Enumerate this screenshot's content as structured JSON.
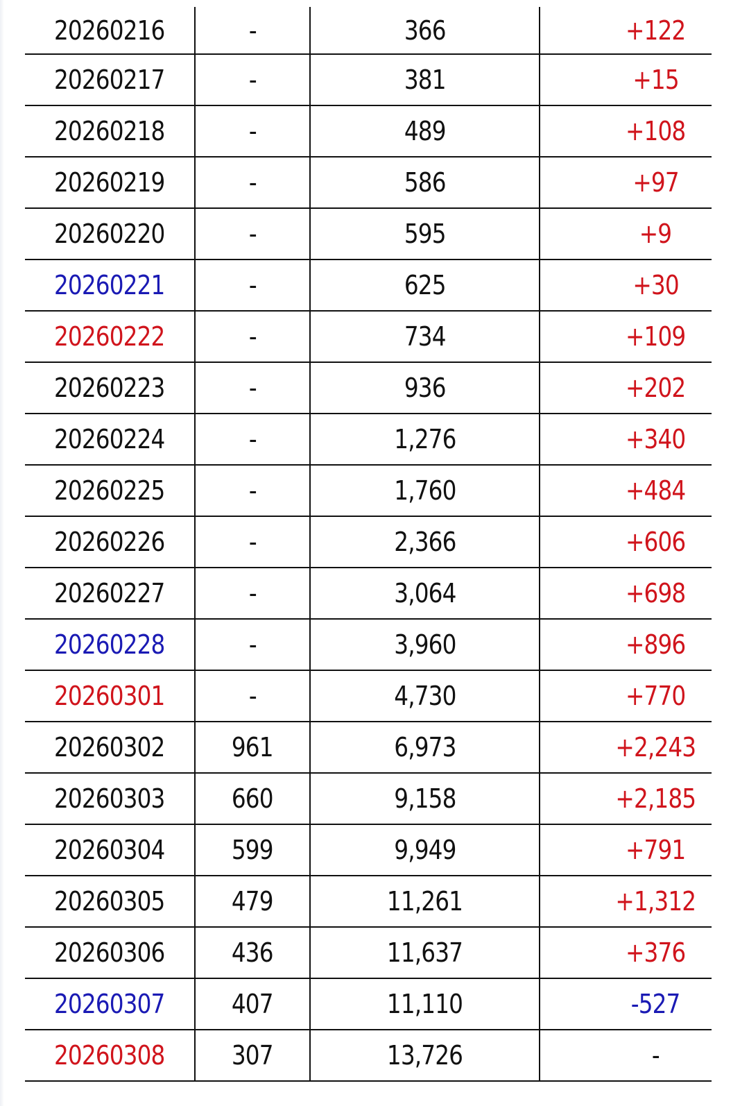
{
  "colors": {
    "default": "#111111",
    "blue": "#1a1ab4",
    "red": "#d0141c"
  },
  "rows": [
    {
      "date": "20260216",
      "date_color": "default",
      "c2": "-",
      "c3": "366",
      "c4": "+122",
      "c4_color": "red"
    },
    {
      "date": "20260217",
      "date_color": "default",
      "c2": "-",
      "c3": "381",
      "c4": "+15",
      "c4_color": "red"
    },
    {
      "date": "20260218",
      "date_color": "default",
      "c2": "-",
      "c3": "489",
      "c4": "+108",
      "c4_color": "red"
    },
    {
      "date": "20260219",
      "date_color": "default",
      "c2": "-",
      "c3": "586",
      "c4": "+97",
      "c4_color": "red"
    },
    {
      "date": "20260220",
      "date_color": "default",
      "c2": "-",
      "c3": "595",
      "c4": "+9",
      "c4_color": "red"
    },
    {
      "date": "20260221",
      "date_color": "blue",
      "c2": "-",
      "c3": "625",
      "c4": "+30",
      "c4_color": "red"
    },
    {
      "date": "20260222",
      "date_color": "red",
      "c2": "-",
      "c3": "734",
      "c4": "+109",
      "c4_color": "red"
    },
    {
      "date": "20260223",
      "date_color": "default",
      "c2": "-",
      "c3": "936",
      "c4": "+202",
      "c4_color": "red"
    },
    {
      "date": "20260224",
      "date_color": "default",
      "c2": "-",
      "c3": "1,276",
      "c4": "+340",
      "c4_color": "red"
    },
    {
      "date": "20260225",
      "date_color": "default",
      "c2": "-",
      "c3": "1,760",
      "c4": "+484",
      "c4_color": "red"
    },
    {
      "date": "20260226",
      "date_color": "default",
      "c2": "-",
      "c3": "2,366",
      "c4": "+606",
      "c4_color": "red"
    },
    {
      "date": "20260227",
      "date_color": "default",
      "c2": "-",
      "c3": "3,064",
      "c4": "+698",
      "c4_color": "red"
    },
    {
      "date": "20260228",
      "date_color": "blue",
      "c2": "-",
      "c3": "3,960",
      "c4": "+896",
      "c4_color": "red"
    },
    {
      "date": "20260301",
      "date_color": "red",
      "c2": "-",
      "c3": "4,730",
      "c4": "+770",
      "c4_color": "red"
    },
    {
      "date": "20260302",
      "date_color": "default",
      "c2": "961",
      "c3": "6,973",
      "c4": "+2,243",
      "c4_color": "red"
    },
    {
      "date": "20260303",
      "date_color": "default",
      "c2": "660",
      "c3": "9,158",
      "c4": "+2,185",
      "c4_color": "red"
    },
    {
      "date": "20260304",
      "date_color": "default",
      "c2": "599",
      "c3": "9,949",
      "c4": "+791",
      "c4_color": "red"
    },
    {
      "date": "20260305",
      "date_color": "default",
      "c2": "479",
      "c3": "11,261",
      "c4": "+1,312",
      "c4_color": "red"
    },
    {
      "date": "20260306",
      "date_color": "default",
      "c2": "436",
      "c3": "11,637",
      "c4": "+376",
      "c4_color": "red"
    },
    {
      "date": "20260307",
      "date_color": "blue",
      "c2": "407",
      "c3": "11,110",
      "c4": "-527",
      "c4_color": "blue"
    },
    {
      "date": "20260308",
      "date_color": "red",
      "c2": "307",
      "c3": "13,726",
      "c4": "-",
      "c4_color": "default"
    }
  ]
}
